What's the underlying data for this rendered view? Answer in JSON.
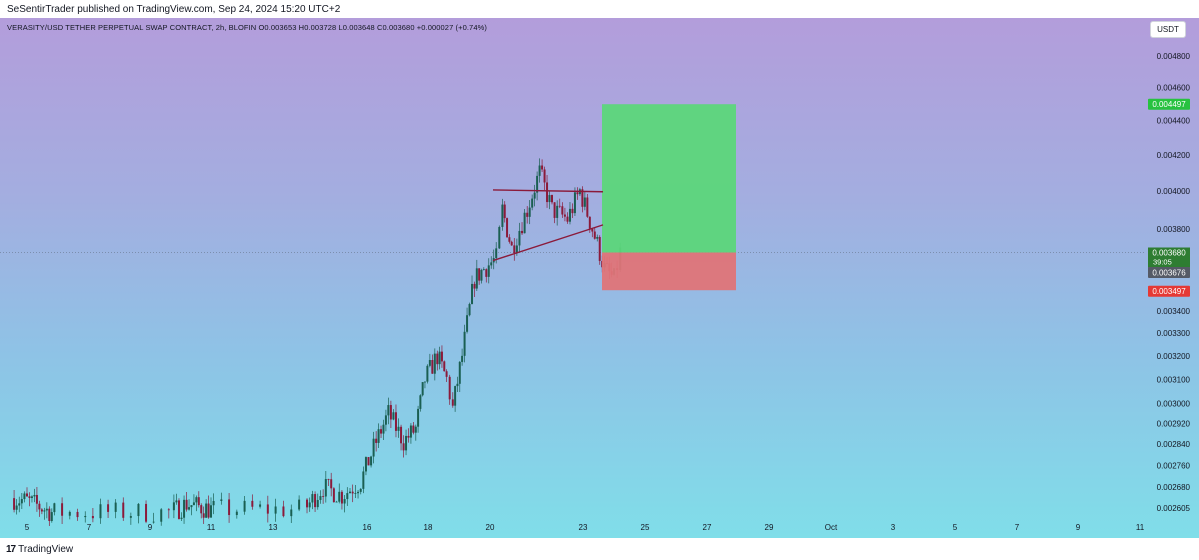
{
  "header": {
    "published_text": "SeSentirTrader published on TradingView.com, Sep 24, 2024 15:20 UTC+2"
  },
  "symbol_info": {
    "text": "VERASITY/USD TETHER PERPETUAL SWAP CONTRACT, 2h, BLOFIN  O0.003653  H0.003728  L0.003648  C0.003680  +0.000027 (+0.74%)"
  },
  "currency_button": {
    "label": "USDT"
  },
  "footer": {
    "logo_mark": "17",
    "logo_text": "TradingView"
  },
  "colors": {
    "up_candle": "#1a5f52",
    "down_candle": "#8b1a3a",
    "target_zone": "#5cd67a",
    "stop_zone": "#df7478",
    "trendline": "#8b1a3a",
    "target_label_bg": "#27c23f",
    "stop_label_bg": "#e53935",
    "current_label_bg": "#2e7d32",
    "prev_label_bg": "#555a66"
  },
  "chart_data": {
    "type": "candlestick",
    "interval": "2h",
    "price_scale": {
      "ticks": [
        "0.004800",
        "0.004600",
        "0.004400",
        "0.004200",
        "0.004000",
        "0.003800",
        "0.003400",
        "0.003300",
        "0.003200",
        "0.003100",
        "0.003000",
        "0.002920",
        "0.002840",
        "0.002760",
        "0.002680",
        "0.002605"
      ],
      "scale": "log"
    },
    "time_axis": {
      "labels": [
        "5",
        "7",
        "9",
        "11",
        "13",
        "16",
        "18",
        "20",
        "23",
        "25",
        "27",
        "29",
        "Oct",
        "3",
        "5",
        "7",
        "9",
        "11"
      ]
    },
    "price_labels": {
      "target": "0.004497",
      "current": "0.003680",
      "countdown": "39:05",
      "previous": "0.003676",
      "stop": "0.003497"
    },
    "position": {
      "type": "long",
      "entry": 0.00368,
      "target": 0.004497,
      "stop": 0.003497,
      "start_date": "Sep 24",
      "end_date": "Sep 28"
    },
    "trendlines": [
      {
        "role": "resistance",
        "from": {
          "date": "Sep 20",
          "price": 0.004005
        },
        "to": {
          "date": "Sep 23",
          "price": 0.003995
        }
      },
      {
        "role": "support",
        "from": {
          "date": "Sep 20",
          "price": 0.00364
        },
        "to": {
          "date": "Sep 23",
          "price": 0.00382
        }
      }
    ],
    "close_path": [
      {
        "date": "Sep 4.5",
        "close": 0.00264
      },
      {
        "date": "Sep 5",
        "close": 0.00263
      },
      {
        "date": "Sep 5.8",
        "close": 0.00259
      },
      {
        "date": "Sep 9.7",
        "close": 0.00259
      },
      {
        "date": "Sep 10.2",
        "close": 0.00262
      },
      {
        "date": "Sep 11",
        "close": 0.0026
      },
      {
        "date": "Sep 14",
        "close": 0.0026
      },
      {
        "date": "Sep 14.6",
        "close": 0.00268
      },
      {
        "date": "Sep 15.2",
        "close": 0.00265
      },
      {
        "date": "Sep 15.8",
        "close": 0.0027
      },
      {
        "date": "Sep 16.3",
        "close": 0.00285
      },
      {
        "date": "Sep 16.7",
        "close": 0.00296
      },
      {
        "date": "Sep 17.2",
        "close": 0.00285
      },
      {
        "date": "Sep 17.6",
        "close": 0.0029
      },
      {
        "date": "Sep 17.9",
        "close": 0.0031
      },
      {
        "date": "Sep 18.3",
        "close": 0.0032
      },
      {
        "date": "Sep 18.6",
        "close": 0.0031
      },
      {
        "date": "Sep 18.8",
        "close": 0.00298
      },
      {
        "date": "Sep 19.1",
        "close": 0.0032
      },
      {
        "date": "Sep 19.5",
        "close": 0.00355
      },
      {
        "date": "Sep 19.8",
        "close": 0.0036
      },
      {
        "date": "Sep 20.2",
        "close": 0.00365
      },
      {
        "date": "Sep 20.4",
        "close": 0.0039
      },
      {
        "date": "Sep 20.7",
        "close": 0.0037
      },
      {
        "date": "Sep 21.2",
        "close": 0.0039
      },
      {
        "date": "Sep 21.6",
        "close": 0.0041
      },
      {
        "date": "Sep 22",
        "close": 0.0039
      },
      {
        "date": "Sep 22.5",
        "close": 0.00385
      },
      {
        "date": "Sep 22.9",
        "close": 0.004
      },
      {
        "date": "Sep 23.3",
        "close": 0.0038
      },
      {
        "date": "Sep 23.7",
        "close": 0.0036
      },
      {
        "date": "Sep 24",
        "close": 0.00355
      },
      {
        "date": "Sep 24.2",
        "close": 0.00368
      }
    ]
  }
}
